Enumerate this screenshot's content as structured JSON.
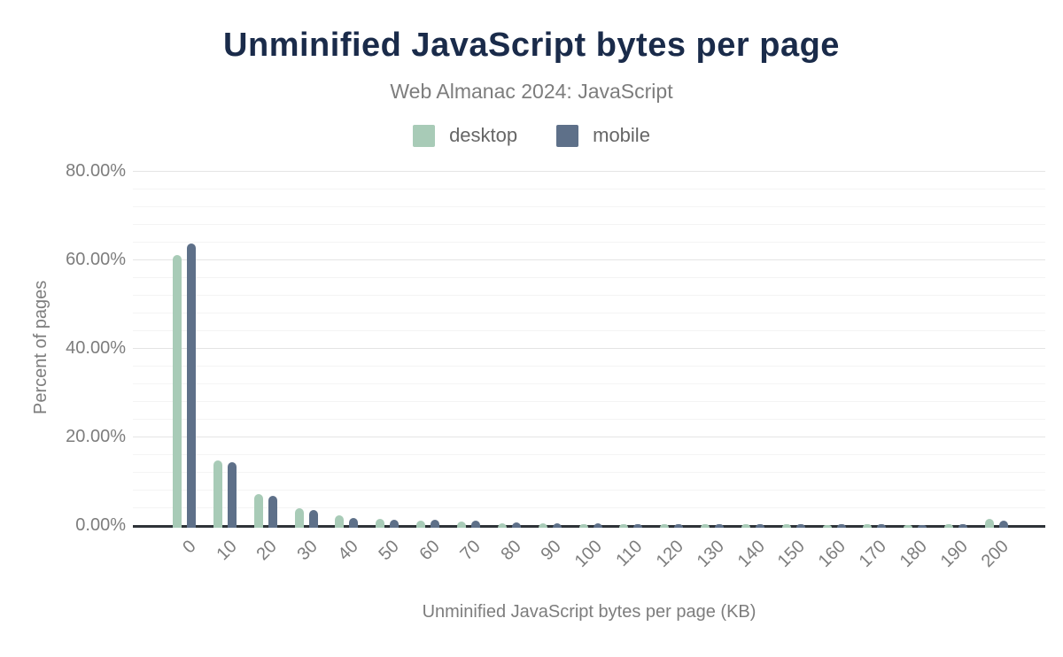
{
  "header": {
    "title": "Unminified JavaScript bytes per page",
    "subtitle": "Web Almanac 2024: JavaScript"
  },
  "colors": {
    "title": "#1a2b4a",
    "subtitle": "#7d7d7d",
    "tick_labels": "#7d7d7d",
    "legend_text": "#666666",
    "desktop": "#a8cbb7",
    "mobile": "#5e7089",
    "axis_line": "#2e3338",
    "major_grid": "#e4e4e4",
    "minor_grid": "#f4f4f4",
    "background": "#ffffff"
  },
  "legend": {
    "items": [
      {
        "label": "desktop",
        "color": "#a8cbb7"
      },
      {
        "label": "mobile",
        "color": "#5e7089"
      }
    ]
  },
  "chart_data": {
    "type": "bar",
    "title": "Unminified JavaScript bytes per page",
    "subtitle": "Web Almanac 2024: JavaScript",
    "xlabel": "Unminified JavaScript bytes per page (KB)",
    "ylabel": "Percent of pages",
    "categories": [
      "0",
      "10",
      "20",
      "30",
      "40",
      "50",
      "60",
      "70",
      "80",
      "90",
      "100",
      "110",
      "120",
      "130",
      "140",
      "150",
      "160",
      "170",
      "180",
      "190",
      "200"
    ],
    "series": [
      {
        "name": "desktop",
        "color": "#a8cbb7",
        "values": [
          61.0,
          14.7,
          7.1,
          3.9,
          2.2,
          1.4,
          1.1,
          0.8,
          0.5,
          0.4,
          0.3,
          0.25,
          0.2,
          0.2,
          0.15,
          0.15,
          0.1,
          0.15,
          0.1,
          0.2,
          1.5
        ]
      },
      {
        "name": "mobile",
        "color": "#5e7089",
        "values": [
          63.6,
          14.2,
          6.6,
          3.4,
          1.7,
          1.2,
          1.2,
          1.0,
          0.7,
          0.5,
          0.45,
          0.3,
          0.25,
          0.2,
          0.2,
          0.15,
          0.15,
          0.15,
          0.1,
          0.15,
          1.0
        ]
      }
    ],
    "ylim": [
      0,
      80
    ],
    "ytick_values": [
      0,
      20,
      40,
      60,
      80
    ],
    "ytick_labels": [
      "0.00%",
      "20.00%",
      "40.00%",
      "60.00%",
      "80.00%"
    ],
    "minor_grid_step_pct": 4,
    "grid": "on",
    "legend_position": "top"
  }
}
